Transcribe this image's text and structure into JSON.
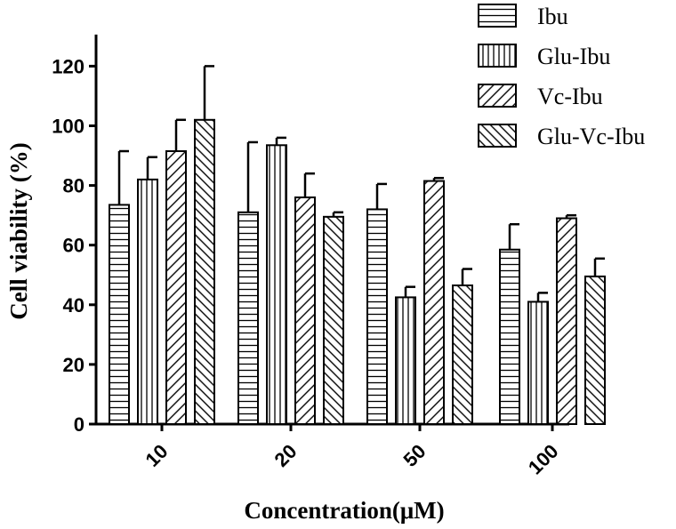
{
  "chart_data": {
    "type": "bar",
    "title": "",
    "xlabel": "Concentration(μM)",
    "ylabel": "Cell viability (%)",
    "ylim": [
      0,
      130
    ],
    "yticks": [
      "0",
      "20",
      "40",
      "60",
      "80",
      "100",
      "120"
    ],
    "categories": [
      "10",
      "20",
      "50",
      "100"
    ],
    "series": [
      {
        "name": "Ibu",
        "pattern": "horizontal",
        "values": [
          73.5,
          71,
          72,
          58.5
        ],
        "errors": [
          18,
          23.5,
          8.5,
          8.5
        ]
      },
      {
        "name": "Glu-Ibu",
        "pattern": "vertical",
        "values": [
          82,
          93.5,
          42.5,
          41
        ],
        "errors": [
          7.5,
          2.5,
          3.5,
          3
        ]
      },
      {
        "name": "Vc-Ibu",
        "pattern": "diagonal-up",
        "values": [
          91.5,
          76,
          81.5,
          69
        ],
        "errors": [
          10.5,
          8,
          1,
          1
        ]
      },
      {
        "name": "Glu-Vc-Ibu",
        "pattern": "diagonal-down",
        "values": [
          102,
          69.5,
          46.5,
          49.5
        ],
        "errors": [
          18,
          1.5,
          5.5,
          6
        ]
      }
    ],
    "legend_position": "top-right",
    "grid": false,
    "colors": {
      "ink": "#000000",
      "fill": "#ffffff"
    }
  }
}
